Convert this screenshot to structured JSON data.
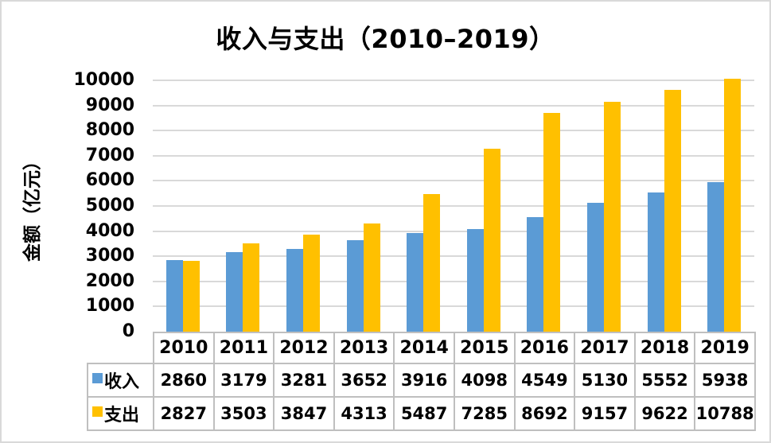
{
  "title": "收入与支出（2010–2019）",
  "chart_data": {
    "type": "bar",
    "title": "收入与支出（2010–2019）",
    "xlabel": "",
    "ylabel": "金额（亿元）",
    "ylim": [
      0,
      10000
    ],
    "ytick_step": 1000,
    "grid": true,
    "legend_position": "table-left",
    "data_table_shown": true,
    "categories": [
      "2010",
      "2011",
      "2012",
      "2013",
      "2014",
      "2015",
      "2016",
      "2017",
      "2018",
      "2019"
    ],
    "series": [
      {
        "key": "income",
        "name": "收入",
        "color": "#5B9BD5",
        "values": [
          2860,
          3179,
          3281,
          3652,
          3916,
          4098,
          4549,
          5130,
          5552,
          5938
        ]
      },
      {
        "key": "expense",
        "name": "支出",
        "color": "#FFC000",
        "values": [
          2827,
          3503,
          3847,
          4313,
          5487,
          7285,
          8692,
          9157,
          9622,
          10788
        ]
      }
    ]
  },
  "colors": {
    "income": "#5B9BD5",
    "expense": "#FFC000",
    "gridline": "#D9D9D9",
    "table_border": "#BFBFBF",
    "outer_border": "#D9D9D9",
    "text": "#000000",
    "background": "#FFFFFF"
  }
}
